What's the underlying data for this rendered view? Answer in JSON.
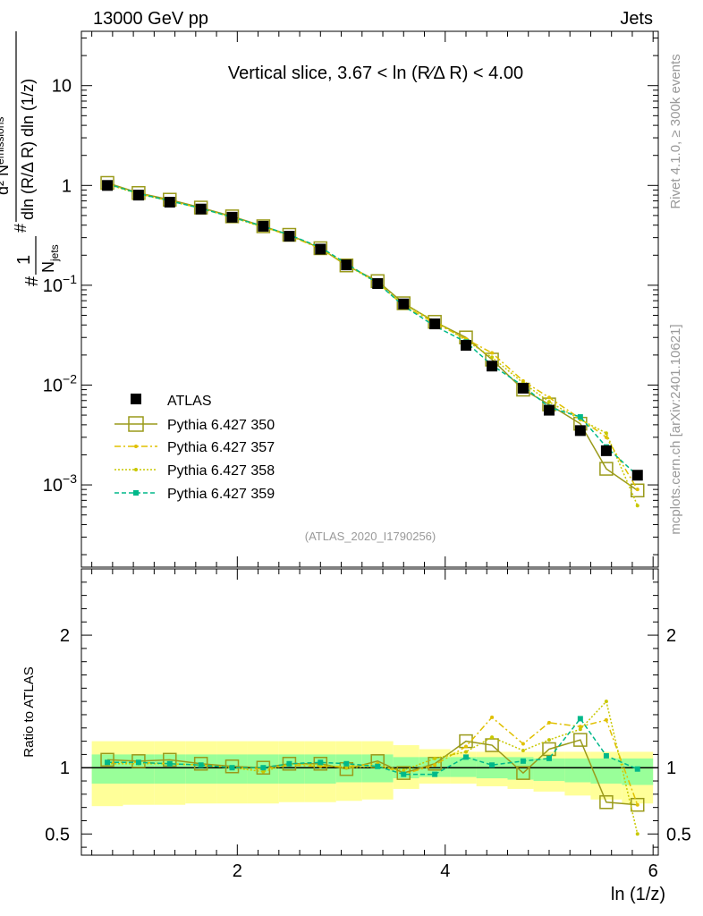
{
  "header": {
    "left_title": "13000 GeV pp",
    "right_title": "Jets"
  },
  "side": {
    "rivet_note": "Rivet 4.1.0, ≥ 300k events",
    "source_note": "mcplots.cern.ch [arXiv:2401.10621]"
  },
  "watermark": "(ATLAS_2020_I1790256)",
  "colors": {
    "data": "#000000",
    "p350": "#9a9a1a",
    "p357": "#e0c000",
    "p358": "#c8c800",
    "p359": "#00b88a",
    "band_outer": "#ffff99",
    "band_inner": "#99ff99"
  },
  "chart_data": [
    {
      "type": "line",
      "panel": "main",
      "title": "Vertical slice, 3.67 < ln (R∕Δ R) < 4.00",
      "ylabel_parts": {
        "a": "#",
        "b": "1",
        "c": "N",
        "c_sub": "jets",
        "d": "#",
        "e": "d² N",
        "e_sub": "emissions",
        "f": "dln (R/Δ R) dln (1/z)"
      },
      "xlabel": "ln (1/z)",
      "yscale": "log",
      "xlim": [
        0.5,
        6.05
      ],
      "ylim": [
        0.00015,
        35
      ],
      "y_ticks": [
        {
          "v": 0.001,
          "base": "10",
          "exp": "−3"
        },
        {
          "v": 0.01,
          "base": "10",
          "exp": "−2"
        },
        {
          "v": 0.1,
          "base": "10",
          "exp": "−1"
        },
        {
          "v": 1,
          "base": "1",
          "exp": ""
        },
        {
          "v": 10,
          "base": "10",
          "exp": ""
        }
      ],
      "x": [
        0.75,
        1.05,
        1.35,
        1.65,
        1.95,
        2.25,
        2.5,
        2.8,
        3.05,
        3.35,
        3.6,
        3.9,
        4.2,
        4.45,
        4.75,
        5.0,
        5.3,
        5.55,
        5.85
      ],
      "x_edges": [
        0.6,
        0.9,
        1.2,
        1.5,
        1.8,
        2.1,
        2.4,
        2.65,
        2.95,
        3.2,
        3.5,
        3.75,
        4.05,
        4.3,
        4.6,
        4.85,
        5.15,
        5.4,
        5.7,
        6.0
      ],
      "series": [
        {
          "name": "ATLAS",
          "key": "data",
          "values": [
            1.0,
            0.8,
            0.68,
            0.58,
            0.48,
            0.39,
            0.31,
            0.23,
            0.16,
            0.104,
            0.065,
            0.041,
            0.025,
            0.0155,
            0.0093,
            0.0056,
            0.0035,
            0.0022,
            0.00125
          ]
        },
        {
          "name": "Pythia 6.427 350",
          "key": "p350",
          "values": [
            1.06,
            0.84,
            0.72,
            0.6,
            0.49,
            0.39,
            0.32,
            0.235,
            0.158,
            0.11,
            0.066,
            0.043,
            0.03,
            0.018,
            0.009,
            0.0064,
            0.0041,
            0.00145,
            0.00088
          ]
        },
        {
          "name": "Pythia 6.427 357",
          "key": "p357",
          "values": [
            1.04,
            0.83,
            0.7,
            0.59,
            0.48,
            0.385,
            0.315,
            0.232,
            0.162,
            0.107,
            0.062,
            0.042,
            0.029,
            0.021,
            0.011,
            0.0075,
            0.0046,
            0.003,
            0.0009
          ]
        },
        {
          "name": "Pythia 6.427 358",
          "key": "p358",
          "values": [
            1.03,
            0.82,
            0.7,
            0.59,
            0.48,
            0.38,
            0.32,
            0.234,
            0.16,
            0.105,
            0.064,
            0.044,
            0.028,
            0.019,
            0.0105,
            0.0068,
            0.0045,
            0.0033,
            0.00062
          ]
        },
        {
          "name": "Pythia 6.427 359",
          "key": "p359",
          "values": [
            1.04,
            0.83,
            0.7,
            0.59,
            0.48,
            0.39,
            0.32,
            0.24,
            0.165,
            0.105,
            0.062,
            0.039,
            0.027,
            0.0158,
            0.0098,
            0.006,
            0.0048,
            0.0024,
            0.00124
          ]
        }
      ],
      "legend": [
        "ATLAS",
        "Pythia 6.427 350",
        "Pythia 6.427 357",
        "Pythia 6.427 358",
        "Pythia 6.427 359"
      ],
      "legend_position": "bottom-left"
    },
    {
      "type": "line",
      "panel": "ratio",
      "ylabel": "Ratio to ATLAS",
      "xlabel": "ln (1/z)",
      "xlim": [
        0.5,
        6.05
      ],
      "ylim": [
        0.34,
        2.5
      ],
      "x_ticks": [
        {
          "v": 2,
          "label": "2"
        },
        {
          "v": 4,
          "label": "4"
        },
        {
          "v": 6,
          "label": "6"
        }
      ],
      "y_ticks": [
        {
          "v": 0.5,
          "label": "0.5"
        },
        {
          "v": 1,
          "label": "1"
        },
        {
          "v": 2,
          "label": "2"
        }
      ],
      "band_outer_up": [
        1.2,
        1.2,
        1.2,
        1.2,
        1.2,
        1.2,
        1.2,
        1.2,
        1.2,
        1.2,
        1.17,
        1.14,
        1.12,
        1.12,
        1.12,
        1.12,
        1.12,
        1.12,
        1.12
      ],
      "band_outer_down": [
        0.71,
        0.72,
        0.72,
        0.73,
        0.73,
        0.73,
        0.74,
        0.74,
        0.75,
        0.76,
        0.84,
        0.88,
        0.88,
        0.86,
        0.84,
        0.82,
        0.79,
        0.76,
        0.73
      ],
      "band_inner_up": [
        1.1,
        1.1,
        1.1,
        1.1,
        1.1,
        1.1,
        1.1,
        1.1,
        1.1,
        1.1,
        1.08,
        1.08,
        1.08,
        1.08,
        1.08,
        1.07,
        1.07,
        1.07,
        1.07
      ],
      "band_inner_down": [
        0.88,
        0.88,
        0.88,
        0.88,
        0.88,
        0.88,
        0.88,
        0.88,
        0.89,
        0.89,
        0.92,
        0.93,
        0.93,
        0.92,
        0.91,
        0.9,
        0.89,
        0.88,
        0.87
      ],
      "series": [
        {
          "name": "Pythia 6.427 350",
          "key": "p350",
          "values": [
            1.06,
            1.05,
            1.06,
            1.03,
            1.01,
            1.0,
            1.03,
            1.03,
            0.99,
            1.05,
            0.96,
            1.03,
            1.2,
            1.17,
            0.96,
            1.14,
            1.21,
            0.74,
            0.72
          ]
        },
        {
          "name": "Pythia 6.427 357",
          "key": "p357",
          "values": [
            1.04,
            1.04,
            1.03,
            1.02,
            1.0,
            0.99,
            1.02,
            1.01,
            1.01,
            1.03,
            0.95,
            1.02,
            1.16,
            1.38,
            1.18,
            1.34,
            1.31,
            1.36,
            0.72
          ]
        },
        {
          "name": "Pythia 6.427 358",
          "key": "p358",
          "values": [
            1.03,
            1.03,
            1.03,
            1.02,
            1.0,
            0.97,
            1.03,
            1.02,
            1.0,
            1.01,
            0.98,
            1.07,
            1.12,
            1.23,
            1.13,
            1.21,
            1.29,
            1.5,
            0.5
          ]
        },
        {
          "name": "Pythia 6.427 359",
          "key": "p359",
          "values": [
            1.04,
            1.04,
            1.03,
            1.02,
            1.0,
            1.0,
            1.03,
            1.04,
            1.03,
            1.01,
            0.95,
            0.95,
            1.08,
            1.02,
            1.05,
            1.07,
            1.37,
            1.09,
            0.99
          ]
        }
      ]
    }
  ]
}
